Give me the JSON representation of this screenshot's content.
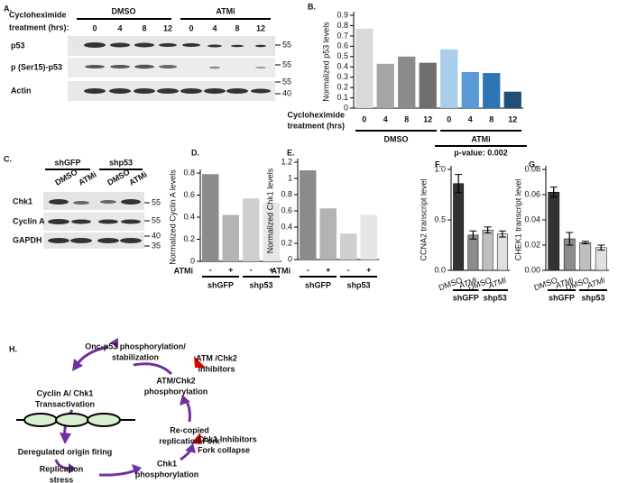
{
  "blot_a": {
    "label": "A.",
    "treatment": [
      "Cycloheximide",
      "treatment (hrs):"
    ],
    "groups": [
      "DMSO",
      "ATMi"
    ],
    "lanes": [
      "0",
      "4",
      "8",
      "12",
      "0",
      "4",
      "8",
      "12"
    ],
    "rows": [
      "p53",
      "p (Ser15)-p53",
      "Actin"
    ],
    "markers": [
      "55",
      "55",
      "55",
      "40"
    ]
  },
  "blot_c": {
    "label": "C.",
    "groups": [
      "shGFP",
      "shp53"
    ],
    "lanes": [
      "DMSO",
      "ATMi",
      "DMSO",
      "ATMi"
    ],
    "rows": [
      "Chk1",
      "Cyclin A",
      "GAPDH"
    ],
    "markers": [
      "55",
      "55",
      "40",
      "35"
    ]
  },
  "chart_data": [
    {
      "type": "bar",
      "label": "B.",
      "ylabel": "Normalized p53 levels",
      "xlabel": [
        "Cycloheximide",
        "treatment (hrs)"
      ],
      "categories": [
        "0",
        "4",
        "8",
        "12",
        "0",
        "4",
        "8",
        "12"
      ],
      "values": [
        0.77,
        0.43,
        0.5,
        0.44,
        0.57,
        0.35,
        0.34,
        0.16
      ],
      "colors": [
        "#d9d9d9",
        "#a6a6a6",
        "#8c8c8c",
        "#6e6e6e",
        "#a9cdec",
        "#5b9bd5",
        "#2e75b6",
        "#1f4e79"
      ],
      "ylim": [
        0,
        0.9
      ],
      "yticks": [
        0,
        0.1,
        0.2,
        0.3,
        0.4,
        0.5,
        0.6,
        0.7,
        0.8,
        0.9
      ],
      "groups": [
        "DMSO",
        "ATMi"
      ],
      "annotation": "p-value: 0.002"
    },
    {
      "type": "bar",
      "label": "D.",
      "ylabel": "Normalized Cyclin A levels",
      "xlabel": "ATMi",
      "categories": [
        "-",
        "+",
        "-",
        "+"
      ],
      "values": [
        0.79,
        0.42,
        0.57,
        0.53
      ],
      "colors": [
        "#8c8c8c",
        "#b3b3b3",
        "#cfcfcf",
        "#e6e6e6"
      ],
      "ylim": [
        0,
        0.8
      ],
      "yticks": [
        0,
        0.2,
        0.4,
        0.6,
        0.8
      ],
      "groups": [
        "shGFP",
        "shp53"
      ]
    },
    {
      "type": "bar",
      "label": "E.",
      "ylabel": "Normalized Chk1 levels",
      "xlabel": "ATMi",
      "categories": [
        "-",
        "+",
        "-",
        "+"
      ],
      "values": [
        1.1,
        0.63,
        0.32,
        0.55
      ],
      "colors": [
        "#8c8c8c",
        "#b3b3b3",
        "#cfcfcf",
        "#e6e6e6"
      ],
      "ylim": [
        0,
        1.2
      ],
      "yticks": [
        0,
        0.2,
        0.4,
        0.6,
        0.8,
        1,
        1.2
      ],
      "groups": [
        "shGFP",
        "shp53"
      ]
    },
    {
      "type": "bar",
      "label": "F.",
      "ylabel": "CCNA2 transcript level",
      "categories": [
        "DMSO",
        "ATMi",
        "DMSO",
        "ATMi"
      ],
      "values": [
        0.86,
        0.35,
        0.4,
        0.36
      ],
      "errors": [
        0.09,
        0.04,
        0.03,
        0.03
      ],
      "colors": [
        "#333333",
        "#8c8c8c",
        "#bfbfbf",
        "#e0e0e0"
      ],
      "ylim": [
        0,
        1.0
      ],
      "yticks": [
        {
          "value": 0,
          "label": "0.0"
        },
        0.5,
        {
          "value": 1.0,
          "label": "1.0"
        }
      ],
      "groups": [
        "shGFP",
        "shp53"
      ]
    },
    {
      "type": "bar",
      "label": "G.",
      "ylabel": "CHEK1 transcript level",
      "categories": [
        "DMSO",
        "ATMi",
        "DMSO",
        "ATMi"
      ],
      "values": [
        0.062,
        0.025,
        0.022,
        0.018
      ],
      "errors": [
        0.004,
        0.005,
        0.001,
        0.002
      ],
      "colors": [
        "#333333",
        "#8c8c8c",
        "#bfbfbf",
        "#e0e0e0"
      ],
      "ylim": [
        0,
        0.08
      ],
      "yticks": [
        {
          "value": 0,
          "label": "0.00"
        },
        {
          "value": 0.02,
          "label": "0.02"
        },
        {
          "value": 0.04,
          "label": "0.04"
        },
        {
          "value": 0.06,
          "label": "0.06"
        },
        {
          "value": 0.08,
          "label": "0.08"
        }
      ],
      "groups": [
        "shGFP",
        "shp53"
      ]
    }
  ],
  "diagram": {
    "label": "H.",
    "nodes": [
      {
        "lines": [
          "Onc-p53 phosphorylation/",
          "stabilization"
        ]
      },
      {
        "lines": [
          "ATM /Chk2",
          "Inhibitors"
        ]
      },
      {
        "lines": [
          "ATM/Chk2",
          "phosphorylation"
        ]
      },
      {
        "lines": [
          "Cyclin A/ Chk1",
          "Transactivation"
        ]
      },
      {
        "lines": [
          "Re-copied",
          "replication Fork"
        ]
      },
      {
        "lines": [
          "Deregulated origin firing"
        ]
      },
      {
        "lines": [
          "Chk1 Inhibitors"
        ]
      },
      {
        "lines": [
          "Fork collapse"
        ]
      },
      {
        "lines": [
          "Replication",
          "stress"
        ]
      },
      {
        "lines": [
          "Chk1",
          "phosphorylation"
        ]
      }
    ]
  }
}
